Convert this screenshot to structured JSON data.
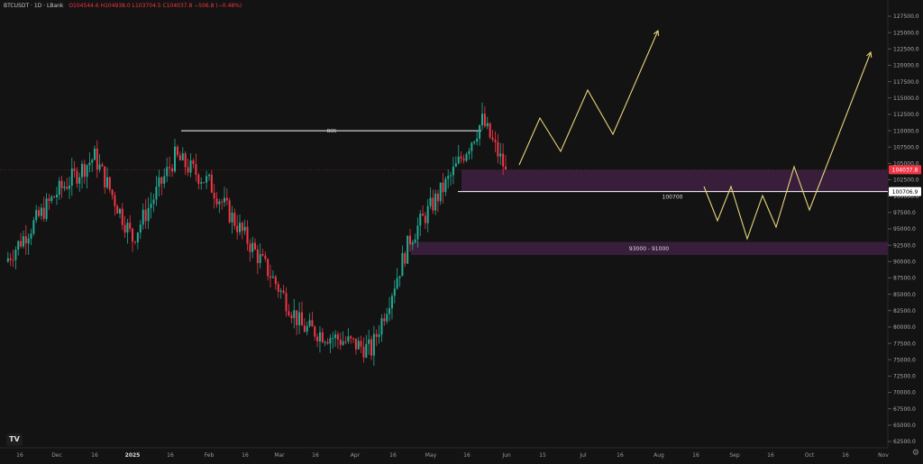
{
  "header": {
    "symbol": "BTCUSDT · 1D · LBank",
    "ohlc": "O104544.6  H104938.0  L103704.5  C104037.8  −506.8 (−0.48%)"
  },
  "price_labels": {
    "current": "104037.8",
    "level": "100706.9"
  },
  "annotations": {
    "bos": "BOS",
    "level_text": "100700",
    "zone_text": "93000 - 91000"
  },
  "logo_text": "TV",
  "icons": [
    "settings-icon"
  ],
  "colors": {
    "background": "#131313",
    "bull": "#22ab94",
    "bear": "#f23645",
    "zone": "#3a1f3d",
    "projection": "#e8d37a",
    "line": "#ffffff"
  },
  "chart_data": {
    "type": "candlestick",
    "title": "",
    "y_axis": {
      "min": 62500,
      "max": 127500,
      "ticks": [
        "127500.0",
        "125000.0",
        "122500.0",
        "120000.0",
        "117500.0",
        "115000.0",
        "112500.0",
        "110000.0",
        "107500.0",
        "105000.0",
        "102500.0",
        "100000.0",
        "97500.0",
        "95000.0",
        "92500.0",
        "90000.0",
        "87500.0",
        "85000.0",
        "82500.0",
        "80000.0",
        "77500.0",
        "75000.0",
        "72500.0",
        "70000.0",
        "67500.0",
        "65000.0",
        "62500.0"
      ]
    },
    "x_axis": {
      "ticks": [
        "16",
        "Dec",
        "16",
        "2025",
        "16",
        "Feb",
        "16",
        "Mar",
        "16",
        "Apr",
        "16",
        "May",
        "16",
        "Jun",
        "15",
        "Jul",
        "16",
        "Aug",
        "16",
        "Sep",
        "16",
        "Oct",
        "16",
        "Nov"
      ]
    },
    "approx_close_path": [
      {
        "date": "2024-11-15",
        "close": 90000
      },
      {
        "date": "2024-12-05",
        "close": 100500
      },
      {
        "date": "2024-12-17",
        "close": 106000
      },
      {
        "date": "2024-12-30",
        "close": 93500
      },
      {
        "date": "2025-01-20",
        "close": 106000
      },
      {
        "date": "2025-02-01",
        "close": 102000
      },
      {
        "date": "2025-02-25",
        "close": 88000
      },
      {
        "date": "2025-03-10",
        "close": 80000
      },
      {
        "date": "2025-04-08",
        "close": 76500
      },
      {
        "date": "2025-04-22",
        "close": 93500
      },
      {
        "date": "2025-05-08",
        "close": 103000
      },
      {
        "date": "2025-05-22",
        "close": 111500
      },
      {
        "date": "2025-06-01",
        "close": 104037.8
      }
    ],
    "zones": [
      {
        "label": "",
        "from": 100700,
        "to": 104000
      },
      {
        "label": "93000 - 91000",
        "from": 91000,
        "to": 93000
      }
    ],
    "levels": [
      {
        "label": "BOS",
        "value": 110000
      },
      {
        "label": "100700",
        "value": 100700
      }
    ]
  }
}
